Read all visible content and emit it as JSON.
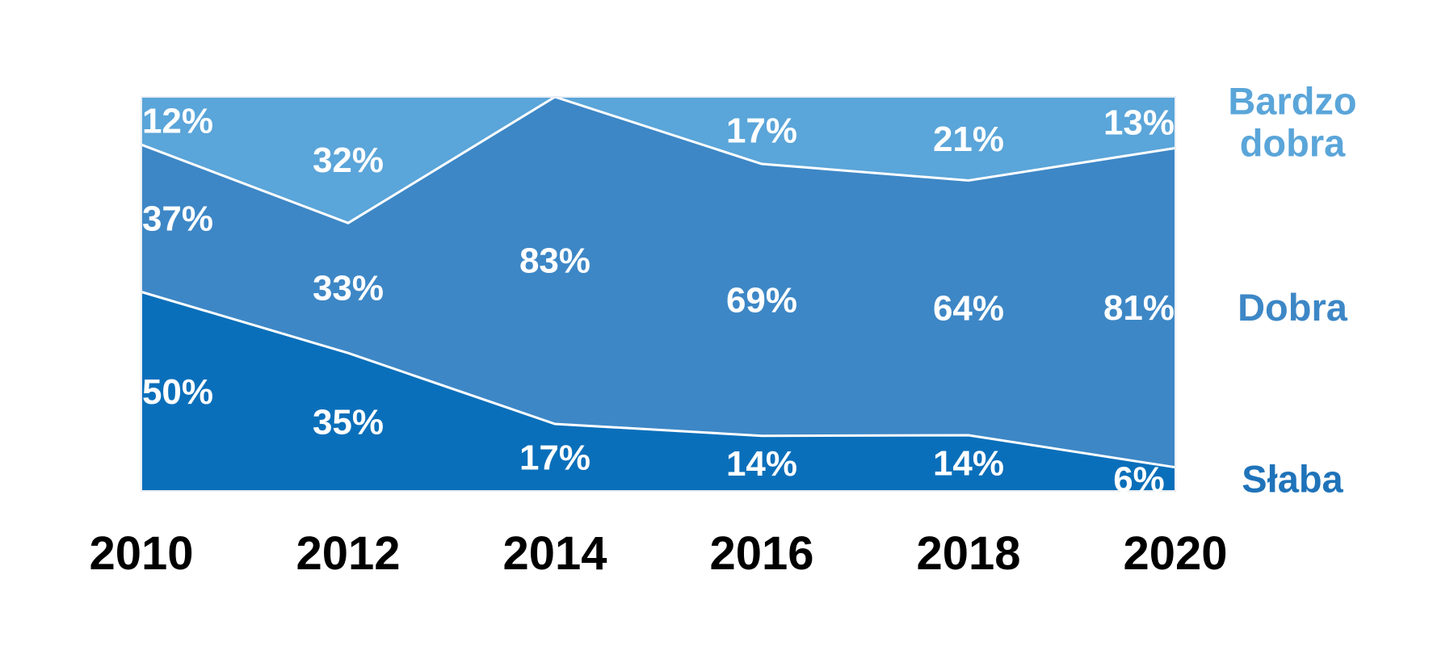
{
  "chart_data": {
    "type": "area",
    "stacked": true,
    "normalized": true,
    "categories": [
      "2010",
      "2012",
      "2014",
      "2016",
      "2018",
      "2020"
    ],
    "ylim": [
      0,
      100
    ],
    "grid": false,
    "legend": "right",
    "series": [
      {
        "name": "Słaba",
        "name_lines": [
          "Słaba"
        ],
        "values": [
          50,
          35,
          17,
          14,
          14,
          6
        ],
        "labels": [
          "50%",
          "35%",
          "17%",
          "14%",
          "14%",
          "6%"
        ],
        "color": "#0a6fba",
        "label_color": "#1f73b9"
      },
      {
        "name": "Dobra",
        "name_lines": [
          "Dobra"
        ],
        "values": [
          37,
          33,
          83,
          69,
          64,
          81
        ],
        "labels": [
          "37%",
          "33%",
          "83%",
          "69%",
          "64%",
          "81%"
        ],
        "color": "#3d87c6",
        "label_color": "#3d87c6"
      },
      {
        "name": "Bardzo dobra",
        "name_lines": [
          "Bardzo",
          "dobra"
        ],
        "values": [
          12,
          32,
          0,
          17,
          21,
          13
        ],
        "labels": [
          "12%",
          "32%",
          "",
          "17%",
          "21%",
          "13%"
        ],
        "color": "#5aa5d9",
        "label_color": "#5aa5d9"
      }
    ]
  }
}
